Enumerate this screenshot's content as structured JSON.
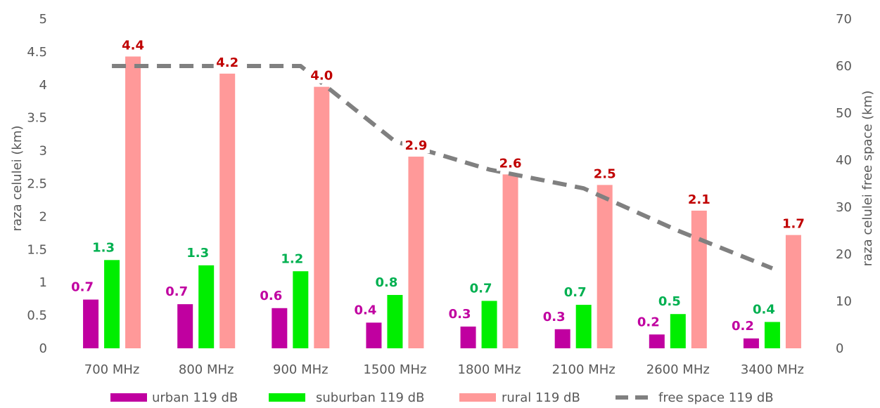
{
  "chart_data": {
    "type": "bar",
    "categories": [
      "700 MHz",
      "800 MHz",
      "900 MHz",
      "1500 MHz",
      "1800 MHz",
      "2100 MHz",
      "2600 MHz",
      "3400 MHz"
    ],
    "series": [
      {
        "name": "urban 119 dB",
        "kind": "bar",
        "axis": "left",
        "color": "#C000A0",
        "label_color": "#C000A0",
        "values": [
          0.74,
          0.67,
          0.61,
          0.39,
          0.33,
          0.29,
          0.21,
          0.15
        ],
        "labels": [
          "0.7",
          "0.7",
          "0.6",
          "0.4",
          "0.3",
          "0.3",
          "0.2",
          "0.2"
        ]
      },
      {
        "name": "suburban 119 dB",
        "kind": "bar",
        "axis": "left",
        "color": "#00EE00",
        "label_color": "#00B050",
        "values": [
          1.34,
          1.26,
          1.17,
          0.81,
          0.72,
          0.66,
          0.52,
          0.4
        ],
        "labels": [
          "1.3",
          "1.3",
          "1.2",
          "0.8",
          "0.7",
          "0.7",
          "0.5",
          "0.4"
        ]
      },
      {
        "name": "rural 119 dB",
        "kind": "bar",
        "axis": "left",
        "color": "#FF9999",
        "label_color": "#C00000",
        "values": [
          4.43,
          4.17,
          3.97,
          2.91,
          2.64,
          2.48,
          2.09,
          1.72
        ],
        "labels": [
          "4.4",
          "4.2",
          "4.0",
          "2.9",
          "2.6",
          "2.5",
          "2.1",
          "1.7"
        ]
      },
      {
        "name": "free space 119 dB",
        "kind": "line",
        "axis": "right",
        "color": "#808080",
        "dashed": true,
        "values": [
          60,
          60,
          60,
          44,
          38,
          34,
          25,
          17
        ]
      }
    ],
    "ylabel": "raza celulei (km)",
    "y2label": "raza celulei free space (km)",
    "ylim": [
      0,
      5
    ],
    "y2lim": [
      0,
      70
    ],
    "yticks": [
      "0",
      "0.5",
      "1",
      "1.5",
      "2",
      "2.5",
      "3",
      "3.5",
      "4",
      "4.5",
      "5"
    ],
    "y2ticks": [
      "0",
      "10",
      "20",
      "30",
      "40",
      "50",
      "60",
      "70"
    ],
    "grid": false,
    "legend_position": "bottom"
  }
}
